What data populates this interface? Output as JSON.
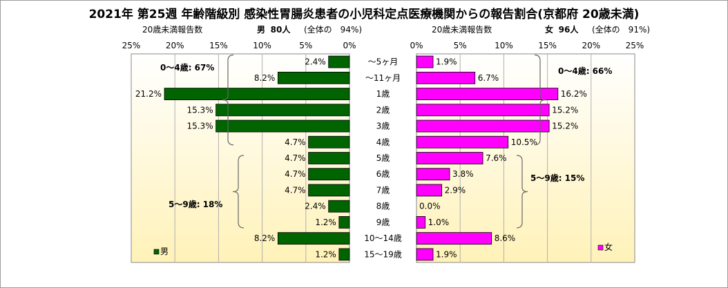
{
  "title": "2021年 第25週 年齢階級別 感染性胃腸炎患者の小児科定点医療機関からの報告割合(京都府 20歳未満)",
  "male_header": {
    "caption": "20歳未満報告数",
    "label": "男",
    "count": "80人",
    "share": "(全体の　94%)"
  },
  "female_header": {
    "caption": "20歳未満報告数",
    "label": "女",
    "count": "96人",
    "share": "(全体の　91%)"
  },
  "chart_data": {
    "type": "bar",
    "orientation": "horizontal-butterfly",
    "categories": [
      "～5ヶ月",
      "～11ヶ月",
      "1歳",
      "2歳",
      "3歳",
      "4歳",
      "5歳",
      "6歳",
      "7歳",
      "8歳",
      "9歳",
      "10～14歳",
      "15～19歳"
    ],
    "series": [
      {
        "name": "男",
        "color": "#006400",
        "values": [
          2.4,
          8.2,
          21.2,
          15.3,
          15.3,
          4.7,
          4.7,
          4.7,
          4.7,
          2.4,
          1.2,
          8.2,
          1.2
        ],
        "labels": [
          "2.4%",
          "8.2%",
          "21.2%",
          "15.3%",
          "15.3%",
          "4.7%",
          "4.7%",
          "4.7%",
          "4.7%",
          "2.4%",
          "1.2%",
          "8.2%",
          "1.2%"
        ]
      },
      {
        "name": "女",
        "color": "#ff00ff",
        "values": [
          1.9,
          6.7,
          16.2,
          15.2,
          15.2,
          10.5,
          7.6,
          3.8,
          2.9,
          0.0,
          1.0,
          8.6,
          1.9
        ],
        "labels": [
          "1.9%",
          "6.7%",
          "16.2%",
          "15.2%",
          "15.2%",
          "10.5%",
          "7.6%",
          "3.8%",
          "2.9%",
          "0.0%",
          "1.0%",
          "8.6%",
          "1.9%"
        ]
      }
    ],
    "xlim": [
      0,
      25
    ],
    "xticks": [
      "0%",
      "5%",
      "10%",
      "15%",
      "20%",
      "25%"
    ],
    "legend": {
      "male": "男",
      "female": "女"
    },
    "annotations": {
      "male_0_4": "0～4歳: 67%",
      "male_5_9": "5～9歳: 18%",
      "female_0_4": "0～4歳: 66%",
      "female_5_9": "5～9歳: 15%"
    }
  }
}
